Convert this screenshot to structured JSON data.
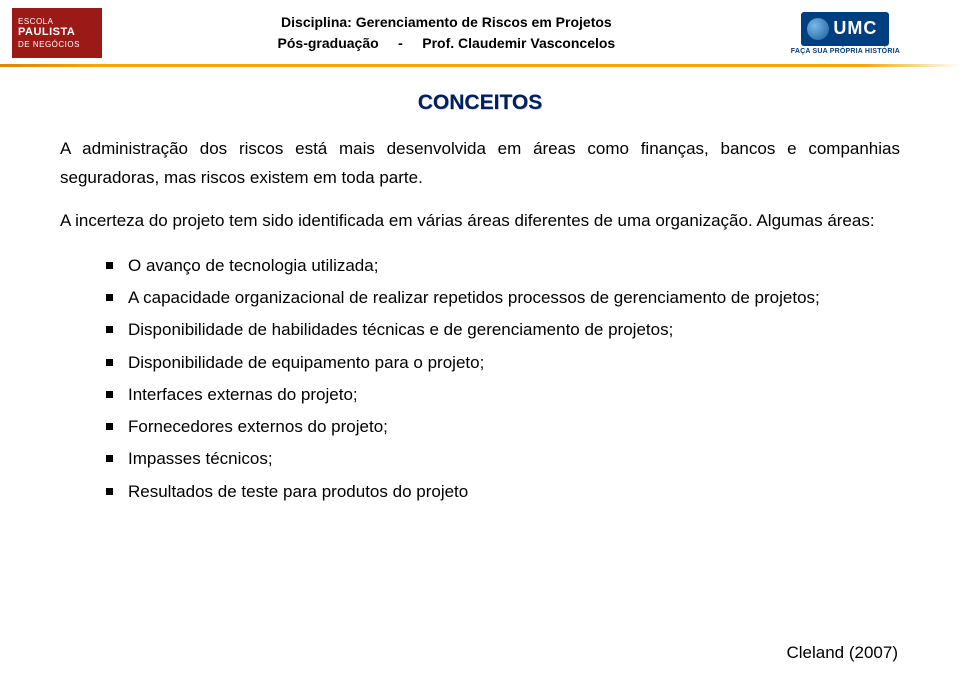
{
  "header": {
    "logo_left": {
      "l1": "ESCOLA",
      "l2": "PAULISTA",
      "l3": "DE NEGÓCIOS"
    },
    "center_line1_label": "Disciplina:",
    "center_line1_value": "Gerenciamento de Riscos em Projetos",
    "center_line2_left": "Pós-graduação",
    "center_line2_sep": "-",
    "center_line2_right": "Prof. Claudemir Vasconcelos",
    "logo_right_text": "UMC",
    "logo_right_tag": "FAÇA SUA PRÓPRIA HISTÓRIA"
  },
  "title": "CONCEITOS",
  "para1": "A administração dos riscos está mais desenvolvida em áreas como finanças, bancos e companhias seguradoras, mas riscos existem em toda parte.",
  "para2": "A incerteza do projeto tem sido identificada em várias áreas diferentes de uma organização. Algumas áreas:",
  "bullets": [
    "O avanço de tecnologia utilizada;",
    "A capacidade organizacional de realizar repetidos processos de gerenciamento de projetos;",
    "Disponibilidade de habilidades técnicas e de gerenciamento de projetos;",
    "Disponibilidade de equipamento para o projeto;",
    "Interfaces externas do projeto;",
    "Fornecedores externos do projeto;",
    "Impasses técnicos;",
    "Resultados de teste para produtos do projeto"
  ],
  "citation": "Cleland (2007)",
  "colors": {
    "title_color": "#001f5f",
    "bar_color": "#f2a900",
    "logo_left_bg": "#9b1a18",
    "logo_right_bg": "#003f7f"
  }
}
